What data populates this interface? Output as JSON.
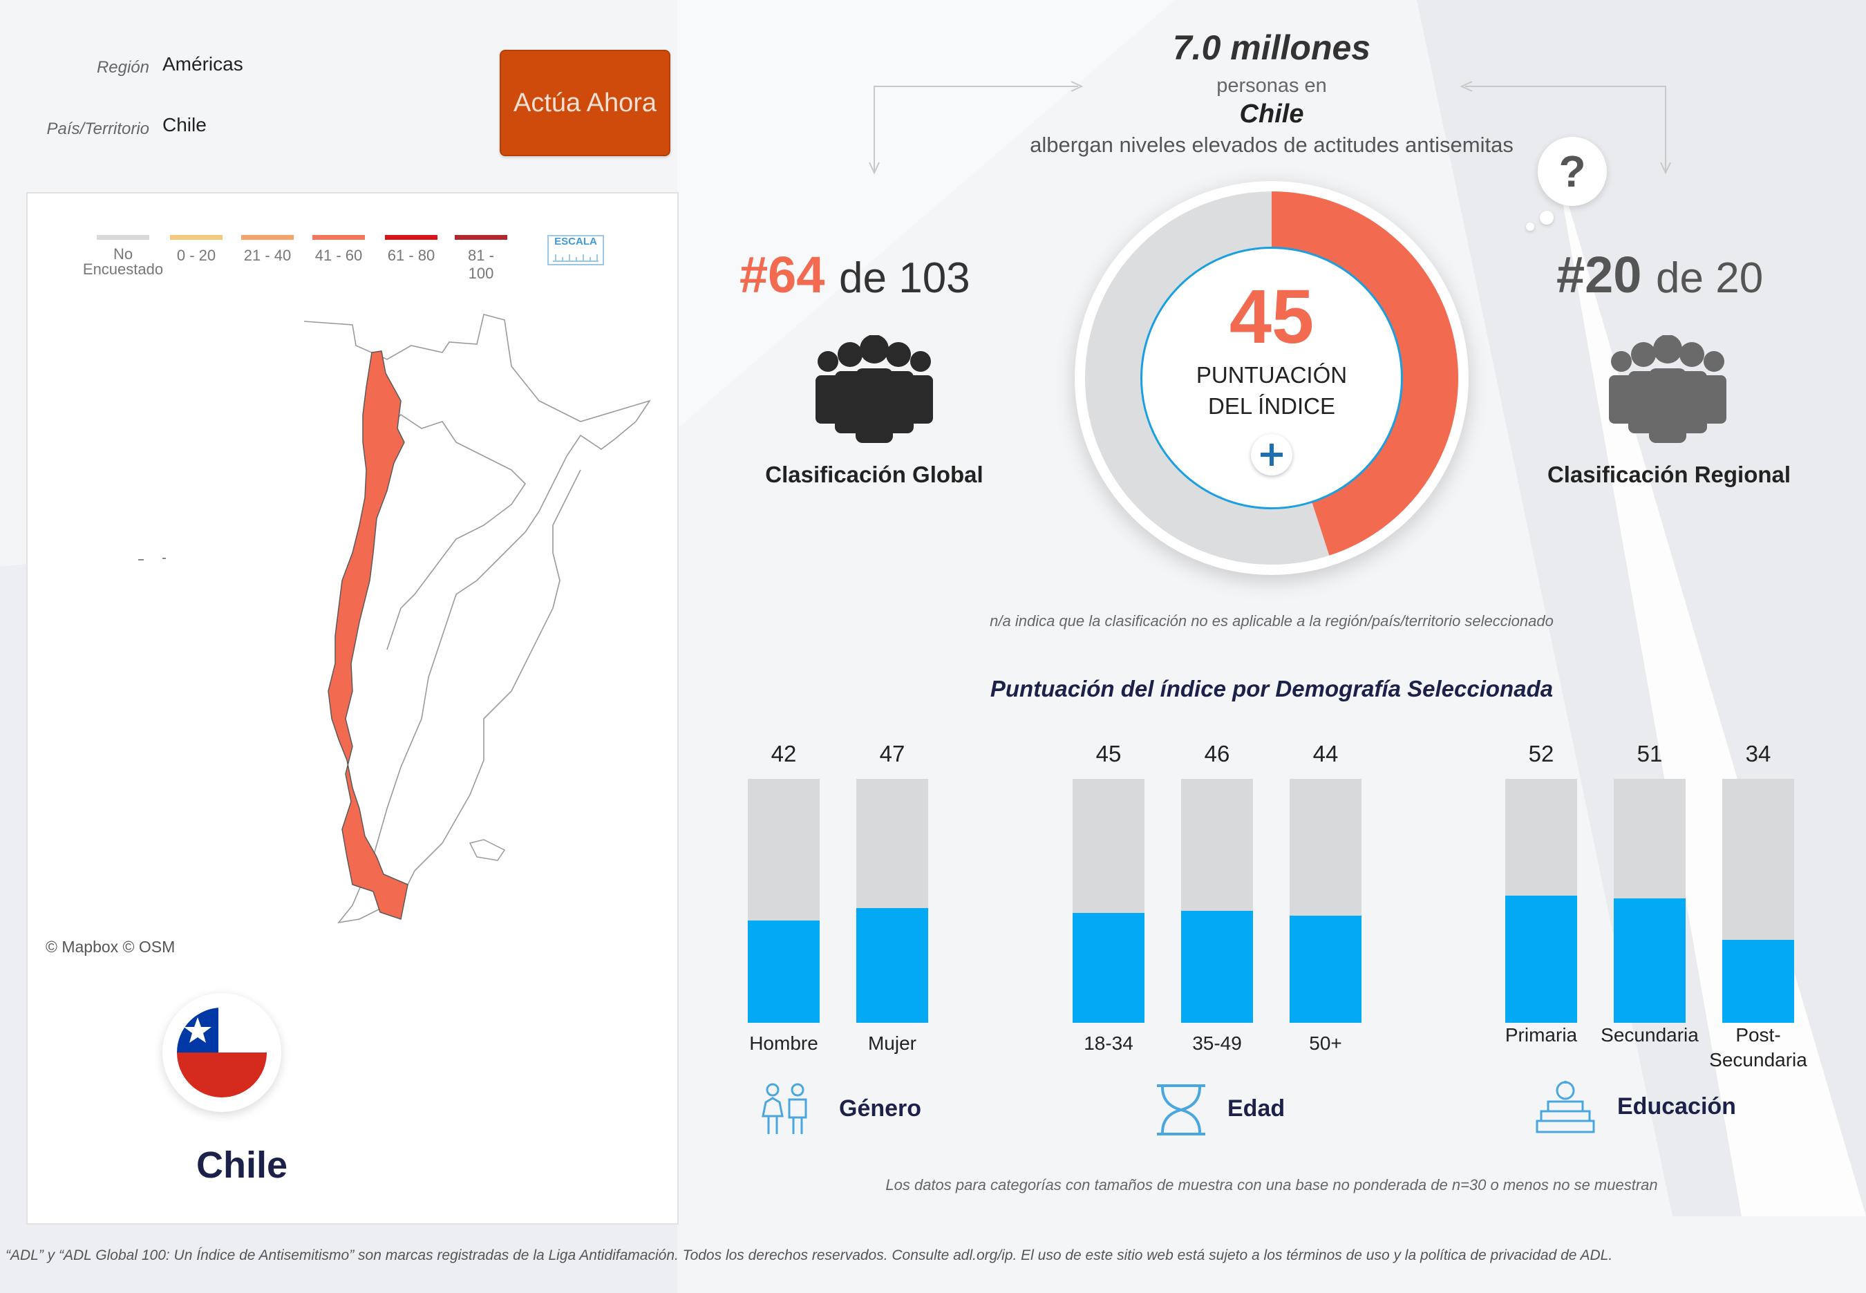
{
  "filters": {
    "region_label": "Región",
    "region_value": "Américas",
    "country_label": "País/Territorio",
    "country_value": "Chile"
  },
  "cta": {
    "label": "Actúa Ahora"
  },
  "map": {
    "legend": [
      {
        "label": "No Encuestado",
        "color": "#d9d9d9"
      },
      {
        "label": "0 - 20",
        "color": "#f6c87a"
      },
      {
        "label": "21 - 40",
        "color": "#f5a36b"
      },
      {
        "label": "41 - 60",
        "color": "#f4775c"
      },
      {
        "label": "61 - 80",
        "color": "#d9151c"
      },
      {
        "label": "81 - 100",
        "color": "#b3282e"
      }
    ],
    "scale_label": "ESCALA",
    "copyright": "© Mapbox © OSM",
    "country_color": "#f26a50"
  },
  "country_name": "Chile",
  "summary": {
    "population": "7.0 millones",
    "personas": "personas en",
    "country": "Chile",
    "albergan": "albergan niveles elevados de actitudes antisemitas"
  },
  "global_rank": {
    "rank": "#64",
    "of": "de 103",
    "label": "Clasificación Global",
    "color": "#f26a50"
  },
  "regional_rank": {
    "rank": "#20",
    "of": "de 20",
    "label": "Clasificación Regional",
    "color": "#555555"
  },
  "index": {
    "score": 45,
    "label_line1": "PUNTUACIÓN",
    "label_line2": "DEL ÍNDICE"
  },
  "bubble": "?",
  "na_note": "n/a indica que la clasificación no es aplicable a la región/país/territorio seleccionado",
  "chart_data": {
    "type": "bar",
    "title": "Puntuación del índice por Demografía Seleccionada",
    "ylim": [
      0,
      100
    ],
    "groups": [
      {
        "name": "Género",
        "categories": [
          "Hombre",
          "Mujer"
        ],
        "values": [
          42,
          47
        ]
      },
      {
        "name": "Edad",
        "categories": [
          "18-34",
          "35-49",
          "50+"
        ],
        "values": [
          45,
          46,
          44
        ]
      },
      {
        "name": "Educación",
        "categories": [
          "Primaria",
          "Secundaria",
          "Post-Secundaria"
        ],
        "values": [
          52,
          51,
          34
        ]
      }
    ],
    "bar_color": "#03a9f4",
    "track_color": "#d8d9db"
  },
  "sample_note": "Los datos para categorías con tamaños de muestra con una base no ponderada de n=30 o menos no se muestran",
  "footer": "“ADL” y “ADL Global 100: Un Índice de Antisemitismo” son marcas registradas de la Liga Antidifamación. Todos los derechos reservados. Consulte adl.org/ip. El uso de este sitio web está sujeto a los términos de uso y la política de privacidad de ADL."
}
